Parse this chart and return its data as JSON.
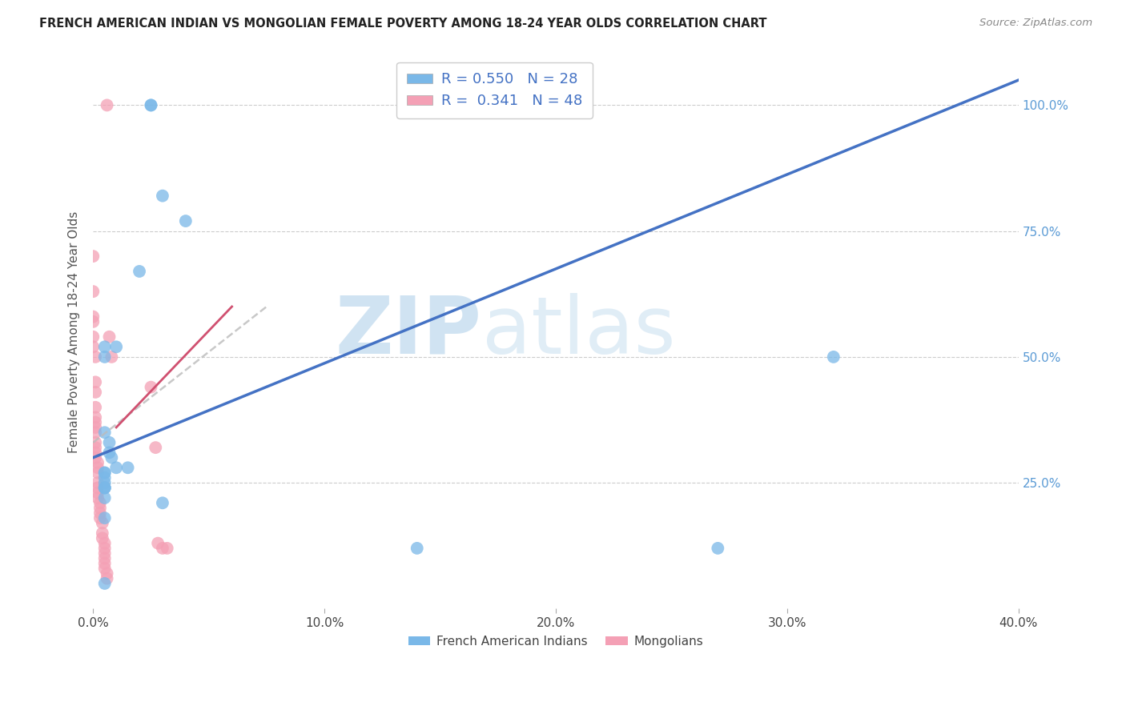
{
  "title": "FRENCH AMERICAN INDIAN VS MONGOLIAN FEMALE POVERTY AMONG 18-24 YEAR OLDS CORRELATION CHART",
  "source": "Source: ZipAtlas.com",
  "ylabel": "Female Poverty Among 18-24 Year Olds",
  "xlim": [
    0,
    0.4
  ],
  "ylim": [
    0.0,
    1.1
  ],
  "ytick_vals": [
    0.25,
    0.5,
    0.75,
    1.0
  ],
  "ytick_labels": [
    "25.0%",
    "50.0%",
    "75.0%",
    "100.0%"
  ],
  "xtick_vals": [
    0.0,
    0.1,
    0.2,
    0.3,
    0.4
  ],
  "xtick_labels": [
    "0.0%",
    "10.0%",
    "20.0%",
    "30.0%",
    "40.0%"
  ],
  "legend_r1": "R = 0.550",
  "legend_n1": "N = 28",
  "legend_r2": "R =  0.341",
  "legend_n2": "N = 48",
  "watermark_zip": "ZIP",
  "watermark_atlas": "atlas",
  "color_blue": "#7ab8e8",
  "color_pink": "#f4a0b5",
  "color_blue_line": "#4472c4",
  "color_pink_line": "#d05070",
  "color_gray_dashed": "#bbbbbb",
  "blue_line_x0": 0.0,
  "blue_line_y0": 0.3,
  "blue_line_x1": 0.4,
  "blue_line_y1": 1.05,
  "pink_line_x0": 0.0,
  "pink_line_y0": 0.33,
  "pink_line_x1": 0.075,
  "pink_line_y1": 0.6,
  "scatter_blue_x": [
    0.025,
    0.025,
    0.03,
    0.04,
    0.02,
    0.01,
    0.005,
    0.005,
    0.005,
    0.007,
    0.007,
    0.008,
    0.01,
    0.015,
    0.005,
    0.005,
    0.005,
    0.005,
    0.005,
    0.005,
    0.005,
    0.005,
    0.03,
    0.005,
    0.32,
    0.005,
    0.14,
    0.27
  ],
  "scatter_blue_y": [
    1.0,
    1.0,
    0.82,
    0.77,
    0.67,
    0.52,
    0.52,
    0.5,
    0.35,
    0.33,
    0.31,
    0.3,
    0.28,
    0.28,
    0.27,
    0.27,
    0.26,
    0.25,
    0.24,
    0.24,
    0.24,
    0.22,
    0.21,
    0.18,
    0.5,
    0.05,
    0.12,
    0.12
  ],
  "scatter_pink_x": [
    0.0,
    0.0,
    0.0,
    0.0,
    0.0,
    0.0,
    0.001,
    0.001,
    0.001,
    0.001,
    0.001,
    0.001,
    0.001,
    0.001,
    0.001,
    0.001,
    0.001,
    0.001,
    0.002,
    0.002,
    0.002,
    0.002,
    0.002,
    0.002,
    0.002,
    0.003,
    0.003,
    0.003,
    0.003,
    0.004,
    0.004,
    0.004,
    0.005,
    0.005,
    0.005,
    0.005,
    0.005,
    0.005,
    0.006,
    0.006,
    0.006,
    0.007,
    0.008,
    0.025,
    0.027,
    0.028,
    0.03,
    0.032
  ],
  "scatter_pink_y": [
    0.7,
    0.63,
    0.58,
    0.57,
    0.54,
    0.52,
    0.5,
    0.45,
    0.43,
    0.4,
    0.38,
    0.37,
    0.36,
    0.35,
    0.33,
    0.32,
    0.31,
    0.3,
    0.29,
    0.28,
    0.27,
    0.25,
    0.24,
    0.23,
    0.22,
    0.21,
    0.2,
    0.19,
    0.18,
    0.17,
    0.15,
    0.14,
    0.13,
    0.12,
    0.11,
    0.1,
    0.09,
    0.08,
    0.07,
    0.06,
    1.0,
    0.54,
    0.5,
    0.44,
    0.32,
    0.13,
    0.12,
    0.12
  ]
}
